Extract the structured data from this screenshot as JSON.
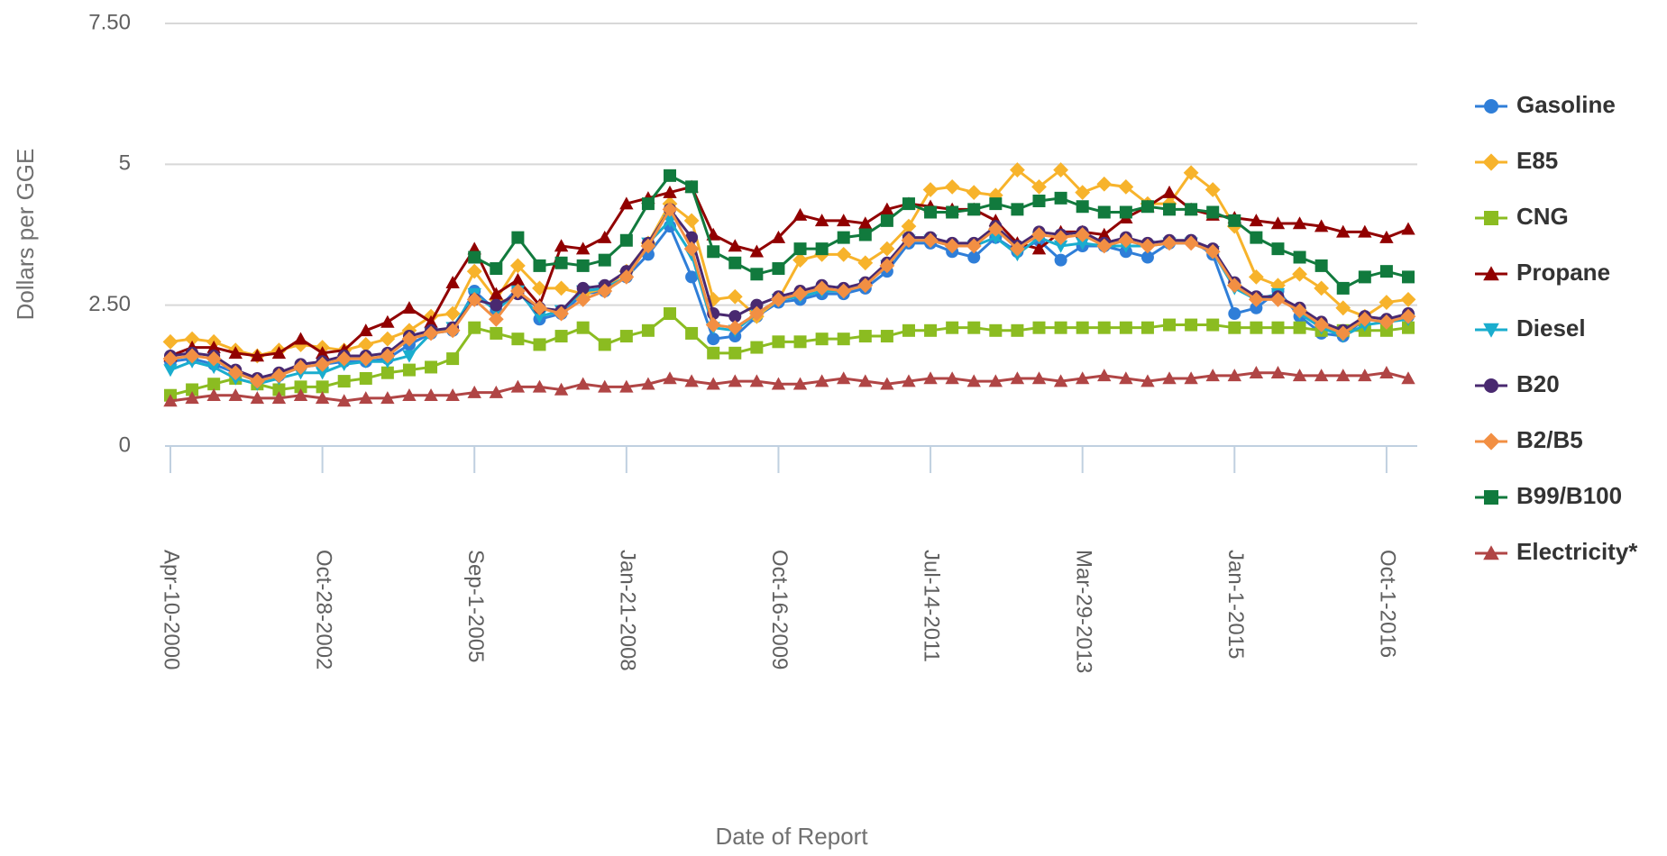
{
  "chart_data": {
    "type": "line",
    "y_label": "Dollars per GGE",
    "x_label": "Date of Report",
    "categories": [
      "Apr-10-2000",
      null,
      null,
      null,
      null,
      null,
      null,
      "Oct-28-2002",
      null,
      null,
      null,
      null,
      null,
      null,
      "Sep-1-2005",
      null,
      null,
      null,
      null,
      null,
      null,
      "Jan-21-2008",
      null,
      null,
      null,
      null,
      null,
      null,
      "Oct-16-2009",
      null,
      null,
      null,
      null,
      null,
      null,
      "Jul-14-2011",
      null,
      null,
      null,
      null,
      null,
      null,
      "Mar-29-2013",
      null,
      null,
      null,
      null,
      null,
      null,
      "Jan-1-2015",
      null,
      null,
      null,
      null,
      null,
      null,
      "Oct-1-2016",
      null
    ],
    "ylim": [
      0,
      7.5
    ],
    "yticks": [
      0,
      {
        "value": 2.5,
        "label": "2.50"
      },
      5,
      {
        "value": 7.5,
        "label": "7.50"
      }
    ],
    "grid": true,
    "legend": "right",
    "series": [
      {
        "name": "Gasoline",
        "color": "#2f7ed8",
        "marker": "circle",
        "values": [
          1.5,
          1.55,
          1.45,
          1.3,
          1.15,
          1.25,
          1.4,
          1.45,
          1.5,
          1.5,
          1.55,
          1.8,
          2.0,
          2.05,
          2.75,
          2.4,
          2.8,
          2.25,
          2.35,
          2.7,
          2.75,
          3.0,
          3.4,
          3.9,
          3.0,
          1.9,
          1.95,
          2.3,
          2.55,
          2.6,
          2.7,
          2.7,
          2.8,
          3.1,
          3.6,
          3.6,
          3.45,
          3.35,
          3.7,
          3.45,
          3.65,
          3.3,
          3.55,
          3.55,
          3.45,
          3.35,
          3.6,
          3.65,
          3.4,
          2.35,
          2.45,
          2.75,
          2.3,
          2.0,
          1.95,
          2.25,
          2.2,
          2.3
        ]
      },
      {
        "name": "E85",
        "color": "#f7b32b",
        "marker": "diamond",
        "values": [
          1.85,
          1.9,
          1.85,
          1.7,
          1.6,
          1.7,
          1.8,
          1.75,
          1.7,
          1.8,
          1.9,
          2.05,
          2.3,
          2.35,
          3.1,
          2.6,
          3.2,
          2.8,
          2.8,
          2.7,
          2.8,
          3.1,
          3.6,
          4.3,
          4.0,
          2.6,
          2.65,
          2.3,
          2.6,
          3.3,
          3.4,
          3.4,
          3.25,
          3.5,
          3.9,
          4.55,
          4.6,
          4.5,
          4.45,
          4.9,
          4.6,
          4.9,
          4.5,
          4.65,
          4.6,
          4.3,
          4.3,
          4.85,
          4.55,
          3.9,
          3.0,
          2.85,
          3.05,
          2.8,
          2.45,
          2.3,
          2.55,
          2.6
        ]
      },
      {
        "name": "CNG",
        "color": "#8bbc21",
        "marker": "square",
        "values": [
          0.9,
          1.0,
          1.1,
          1.2,
          1.1,
          1.0,
          1.05,
          1.05,
          1.15,
          1.2,
          1.3,
          1.35,
          1.4,
          1.55,
          2.1,
          2.0,
          1.9,
          1.8,
          1.95,
          2.1,
          1.8,
          1.95,
          2.05,
          2.35,
          2.0,
          1.65,
          1.65,
          1.75,
          1.85,
          1.85,
          1.9,
          1.9,
          1.95,
          1.95,
          2.05,
          2.05,
          2.1,
          2.1,
          2.05,
          2.05,
          2.1,
          2.1,
          2.1,
          2.1,
          2.1,
          2.1,
          2.15,
          2.15,
          2.15,
          2.1,
          2.1,
          2.1,
          2.1,
          2.05,
          2.05,
          2.05,
          2.05,
          2.1
        ]
      },
      {
        "name": "Propane",
        "color": "#910000",
        "marker": "triangle",
        "values": [
          1.6,
          1.75,
          1.75,
          1.65,
          1.6,
          1.65,
          1.9,
          1.65,
          1.7,
          2.05,
          2.2,
          2.45,
          2.2,
          2.9,
          3.5,
          2.7,
          2.95,
          2.5,
          3.55,
          3.5,
          3.7,
          4.3,
          4.4,
          4.5,
          4.6,
          3.75,
          3.55,
          3.45,
          3.7,
          4.1,
          4.0,
          4.0,
          3.95,
          4.2,
          4.3,
          4.25,
          4.2,
          4.2,
          4.0,
          3.6,
          3.5,
          3.8,
          3.8,
          3.75,
          4.05,
          4.25,
          4.5,
          4.2,
          4.1,
          4.05,
          4.0,
          3.95,
          3.95,
          3.9,
          3.8,
          3.8,
          3.7,
          3.85
        ]
      },
      {
        "name": "Diesel",
        "color": "#1aadce",
        "marker": "triangle-down",
        "values": [
          1.35,
          1.5,
          1.4,
          1.2,
          1.1,
          1.2,
          1.3,
          1.3,
          1.45,
          1.5,
          1.5,
          1.6,
          2.0,
          2.1,
          2.7,
          2.4,
          2.75,
          2.3,
          2.4,
          2.75,
          2.8,
          3.0,
          3.6,
          4.0,
          3.4,
          2.1,
          2.05,
          2.35,
          2.6,
          2.65,
          2.75,
          2.75,
          2.85,
          3.2,
          3.65,
          3.65,
          3.55,
          3.55,
          3.7,
          3.4,
          3.7,
          3.55,
          3.6,
          3.55,
          3.55,
          3.55,
          3.6,
          3.6,
          3.45,
          2.8,
          2.6,
          2.7,
          2.35,
          2.1,
          1.95,
          2.15,
          2.2,
          2.25
        ]
      },
      {
        "name": "B20",
        "color": "#492970",
        "marker": "circle",
        "values": [
          1.6,
          1.65,
          1.6,
          1.35,
          1.2,
          1.3,
          1.45,
          1.5,
          1.6,
          1.6,
          1.65,
          1.95,
          2.05,
          2.1,
          2.6,
          2.5,
          2.7,
          2.45,
          2.4,
          2.8,
          2.85,
          3.1,
          3.6,
          4.2,
          3.7,
          2.35,
          2.3,
          2.5,
          2.65,
          2.75,
          2.85,
          2.8,
          2.9,
          3.25,
          3.7,
          3.7,
          3.6,
          3.6,
          3.9,
          3.55,
          3.8,
          3.75,
          3.8,
          3.6,
          3.7,
          3.6,
          3.65,
          3.65,
          3.5,
          2.9,
          2.65,
          2.65,
          2.45,
          2.2,
          2.05,
          2.3,
          2.25,
          2.35
        ]
      },
      {
        "name": "B2/B5",
        "color": "#f28f43",
        "marker": "diamond",
        "values": [
          1.55,
          1.6,
          1.55,
          1.3,
          1.15,
          1.25,
          1.4,
          1.45,
          1.55,
          1.55,
          1.6,
          1.9,
          2.0,
          2.05,
          2.6,
          2.25,
          2.75,
          2.45,
          2.35,
          2.6,
          2.75,
          3.0,
          3.55,
          4.2,
          3.5,
          2.15,
          2.1,
          2.35,
          2.6,
          2.7,
          2.8,
          2.75,
          2.85,
          3.2,
          3.65,
          3.65,
          3.55,
          3.55,
          3.85,
          3.5,
          3.75,
          3.7,
          3.75,
          3.55,
          3.65,
          3.55,
          3.6,
          3.6,
          3.45,
          2.85,
          2.6,
          2.6,
          2.4,
          2.15,
          2.0,
          2.25,
          2.2,
          2.3
        ]
      },
      {
        "name": "B99/B100",
        "color": "#117a3d",
        "marker": "square",
        "values": [
          null,
          null,
          null,
          null,
          null,
          null,
          null,
          null,
          null,
          null,
          null,
          null,
          null,
          null,
          3.35,
          3.15,
          3.7,
          3.2,
          3.25,
          3.2,
          3.3,
          3.65,
          4.3,
          4.8,
          4.6,
          3.45,
          3.25,
          3.05,
          3.15,
          3.5,
          3.5,
          3.7,
          3.75,
          4.0,
          4.3,
          4.15,
          4.15,
          4.2,
          4.3,
          4.2,
          4.35,
          4.4,
          4.25,
          4.15,
          4.15,
          4.25,
          4.2,
          4.2,
          4.15,
          4.0,
          3.7,
          3.5,
          3.35,
          3.2,
          2.8,
          3.0,
          3.1,
          3.0
        ]
      },
      {
        "name": "Electricity*",
        "color": "#b04545",
        "marker": "triangle",
        "values": [
          0.8,
          0.85,
          0.9,
          0.9,
          0.85,
          0.85,
          0.9,
          0.85,
          0.8,
          0.85,
          0.85,
          0.9,
          0.9,
          0.9,
          0.95,
          0.95,
          1.05,
          1.05,
          1.0,
          1.1,
          1.05,
          1.05,
          1.1,
          1.2,
          1.15,
          1.1,
          1.15,
          1.15,
          1.1,
          1.1,
          1.15,
          1.2,
          1.15,
          1.1,
          1.15,
          1.2,
          1.2,
          1.15,
          1.15,
          1.2,
          1.2,
          1.15,
          1.2,
          1.25,
          1.2,
          1.15,
          1.2,
          1.2,
          1.25,
          1.25,
          1.3,
          1.3,
          1.25,
          1.25,
          1.25,
          1.25,
          1.3,
          1.2
        ]
      }
    ]
  }
}
